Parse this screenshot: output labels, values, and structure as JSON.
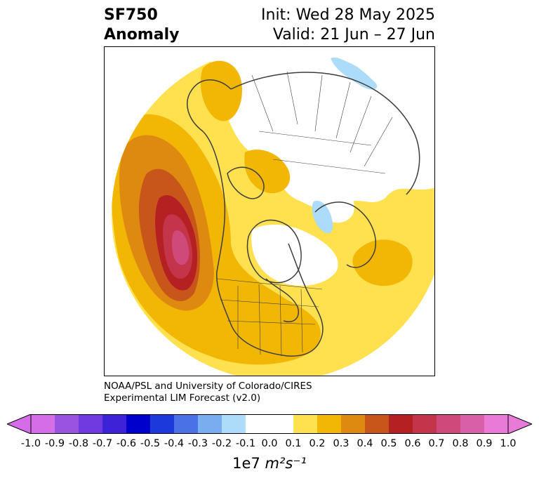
{
  "header": {
    "title_line1": "SF750",
    "title_line2": "Anomaly",
    "init": "Init: Wed 28 May 2025",
    "valid": "Valid: 21 Jun – 27 Jun"
  },
  "credit": {
    "line1": "NOAA/PSL and University of Colorado/CIRES",
    "line2": "Experimental LIM Forecast (v2.0)"
  },
  "colorbar": {
    "ticks": [
      "-1.0",
      "-0.9",
      "-0.8",
      "-0.7",
      "-0.6",
      "-0.5",
      "-0.4",
      "-0.3",
      "-0.2",
      "-0.1",
      "0.0",
      "0.1",
      "0.2",
      "0.3",
      "0.4",
      "0.5",
      "0.6",
      "0.7",
      "0.8",
      "0.9",
      "1.0"
    ],
    "colors": [
      "#9a52e0",
      "#6f3be0",
      "#3d22d8",
      "#0000cc",
      "#1c3ad9",
      "#4a72e6",
      "#78aef0",
      "#acdcfa",
      "#ffffff",
      "#ffffff",
      "#ffe14f",
      "#f2b705",
      "#de8a10",
      "#c8561a",
      "#b52122",
      "#c4344a",
      "#cf4a7a",
      "#d960a8"
    ],
    "extend_low_color": "#d66de8",
    "extend_high_color": "#e97ad8",
    "units_prefix": "1e7 ",
    "units": "m²s⁻¹"
  },
  "map": {
    "projection": "north-polar-stereographic",
    "colors": {
      "yellow": "#ffe14f",
      "gold": "#f2b705",
      "orange": "#de8a10",
      "rust": "#c8561a",
      "red": "#b52122",
      "crimson": "#c4344a",
      "pink": "#cf4a7a",
      "lightblue": "#acdcfa",
      "coast": "#3d3d3d"
    }
  }
}
